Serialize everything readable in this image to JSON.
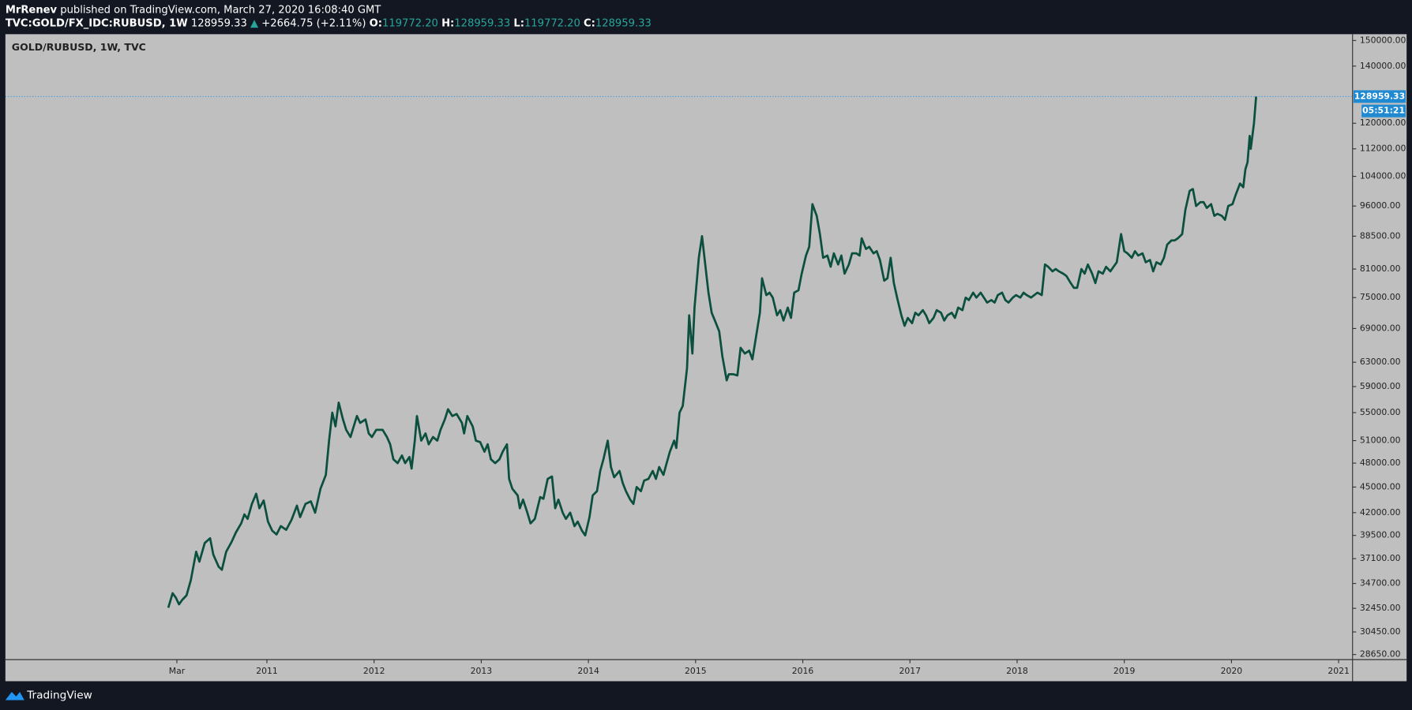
{
  "header": {
    "author": "MrRenev",
    "published": "published on TradingView.com, March 27, 2020 16:08:40 GMT",
    "symbol": "TVC:GOLD/FX_IDC:RUBUSD, 1W",
    "last": "128959.33",
    "arrow": "▲",
    "change": "+2664.75 (+2.11%)",
    "ohlc": [
      {
        "label": "O:",
        "value": "119772.20"
      },
      {
        "label": "H:",
        "value": "128959.33"
      },
      {
        "label": "L:",
        "value": "119772.20"
      },
      {
        "label": "C:",
        "value": "128959.33"
      }
    ]
  },
  "footer": {
    "brand": "TradingView"
  },
  "chart_data": {
    "type": "line",
    "title": "GOLD/RUBUSD, 1W, TVC",
    "color": "#0b4f3e",
    "log": true,
    "grid": false,
    "xlim": [
      2008.56,
      2021.13
    ],
    "xticks": [
      {
        "value": 2010.16,
        "label": "Mar"
      },
      2011,
      2012,
      2013,
      2014,
      2015,
      2016,
      2017,
      2018,
      2019,
      2020,
      2021
    ],
    "ylim": [
      28260,
      152570
    ],
    "yticks": [
      {
        "value": 150000,
        "label": "150000.00"
      },
      {
        "value": 140000,
        "label": "140000.00"
      },
      {
        "value": 120000,
        "label": "120000.00"
      },
      {
        "value": 112000,
        "label": "112000.00"
      },
      {
        "value": 104000,
        "label": "104000.00"
      },
      {
        "value": 96000,
        "label": "96000.00"
      },
      {
        "value": 88500,
        "label": "88500.00"
      },
      {
        "value": 81000,
        "label": "81000.00"
      },
      {
        "value": 75000,
        "label": "75000.00"
      },
      {
        "value": 69000,
        "label": "69000.00"
      },
      {
        "value": 63000,
        "label": "63000.00"
      },
      {
        "value": 59000,
        "label": "59000.00"
      },
      {
        "value": 55000,
        "label": "55000.00"
      },
      {
        "value": 51000,
        "label": "51000.00"
      },
      {
        "value": 48000,
        "label": "48000.00"
      },
      {
        "value": 45000,
        "label": "45000.00"
      },
      {
        "value": 42000,
        "label": "42000.00"
      },
      {
        "value": 39500,
        "label": "39500.00"
      },
      {
        "value": 37100,
        "label": "37100.00"
      },
      {
        "value": 34700,
        "label": "34700.00"
      },
      {
        "value": 32450,
        "label": "32450.00"
      },
      {
        "value": 30450,
        "label": "30450.00"
      },
      {
        "value": 28650,
        "label": "28650.00"
      }
    ],
    "last_price": {
      "value": 128959.33,
      "label": "128959.33"
    },
    "countdown": "05:51:21",
    "x": [
      2010.08,
      2010.12,
      2010.15,
      2010.18,
      2010.21,
      2010.25,
      2010.29,
      2010.34,
      2010.37,
      2010.42,
      2010.47,
      2010.5,
      2010.55,
      2010.58,
      2010.62,
      2010.67,
      2010.71,
      2010.76,
      2010.79,
      2010.82,
      2010.86,
      2010.9,
      2010.93,
      2010.97,
      2011.01,
      2011.05,
      2011.09,
      2011.13,
      2011.18,
      2011.23,
      2011.28,
      2011.31,
      2011.36,
      2011.41,
      2011.45,
      2011.5,
      2011.55,
      2011.58,
      2011.61,
      2011.64,
      2011.67,
      2011.71,
      2011.74,
      2011.78,
      2011.81,
      2011.84,
      2011.87,
      2011.92,
      2011.95,
      2011.98,
      2012.02,
      2012.08,
      2012.12,
      2012.15,
      2012.18,
      2012.22,
      2012.26,
      2012.29,
      2012.33,
      2012.35,
      2012.38,
      2012.4,
      2012.44,
      2012.48,
      2012.51,
      2012.55,
      2012.59,
      2012.62,
      2012.66,
      2012.69,
      2012.73,
      2012.77,
      2012.82,
      2012.84,
      2012.87,
      2012.92,
      2012.95,
      2012.99,
      2013.03,
      2013.06,
      2013.09,
      2013.13,
      2013.17,
      2013.2,
      2013.24,
      2013.26,
      2013.29,
      2013.34,
      2013.36,
      2013.39,
      2013.43,
      2013.46,
      2013.5,
      2013.55,
      2013.58,
      2013.62,
      2013.66,
      2013.69,
      2013.72,
      2013.76,
      2013.79,
      2013.83,
      2013.87,
      2013.9,
      2013.94,
      2013.97,
      2014.01,
      2014.04,
      2014.08,
      2014.11,
      2014.14,
      2014.18,
      2014.21,
      2014.24,
      2014.29,
      2014.32,
      2014.35,
      2014.39,
      2014.42,
      2014.45,
      2014.49,
      2014.52,
      2014.56,
      2014.6,
      2014.63,
      2014.66,
      2014.7,
      2014.73,
      2014.76,
      2014.8,
      2014.82,
      2014.85,
      2014.88,
      2014.92,
      2014.94,
      2014.97,
      2014.99,
      2015.03,
      2015.06,
      2015.09,
      2015.12,
      2015.15,
      2015.18,
      2015.22,
      2015.25,
      2015.29,
      2015.31,
      2015.35,
      2015.39,
      2015.42,
      2015.46,
      2015.5,
      2015.53,
      2015.56,
      2015.6,
      2015.62,
      2015.66,
      2015.69,
      2015.72,
      2015.76,
      2015.79,
      2015.82,
      2015.86,
      2015.89,
      2015.92,
      2015.96,
      2015.99,
      2016.03,
      2016.06,
      2016.09,
      2016.13,
      2016.16,
      2016.19,
      2016.23,
      2016.26,
      2016.29,
      2016.33,
      2016.36,
      2016.39,
      2016.43,
      2016.46,
      2016.5,
      2016.53,
      2016.55,
      2016.59,
      2016.62,
      2016.66,
      2016.69,
      2016.72,
      2016.76,
      2016.79,
      2016.82,
      2016.85,
      2016.88,
      2016.92,
      2016.95,
      2016.98,
      2017.02,
      2017.05,
      2017.08,
      2017.12,
      2017.15,
      2017.18,
      2017.22,
      2017.25,
      2017.29,
      2017.32,
      2017.35,
      2017.39,
      2017.42,
      2017.45,
      2017.49,
      2017.52,
      2017.55,
      2017.59,
      2017.62,
      2017.66,
      2017.69,
      2017.72,
      2017.76,
      2017.79,
      2017.82,
      2017.86,
      2017.89,
      2017.92,
      2017.96,
      2017.99,
      2018.03,
      2018.06,
      2018.09,
      2018.13,
      2018.16,
      2018.19,
      2018.23,
      2018.26,
      2018.29,
      2018.33,
      2018.36,
      2018.39,
      2018.43,
      2018.46,
      2018.5,
      2018.53,
      2018.56,
      2018.6,
      2018.63,
      2018.66,
      2018.7,
      2018.73,
      2018.76,
      2018.8,
      2018.83,
      2018.87,
      2018.9,
      2018.93,
      2018.97,
      2019.0,
      2019.03,
      2019.07,
      2019.1,
      2019.13,
      2019.17,
      2019.2,
      2019.24,
      2019.27,
      2019.3,
      2019.34,
      2019.37,
      2019.4,
      2019.44,
      2019.47,
      2019.5,
      2019.54,
      2019.57,
      2019.61,
      2019.64,
      2019.67,
      2019.71,
      2019.74,
      2019.77,
      2019.81,
      2019.84,
      2019.87,
      2019.91,
      2019.94,
      2019.97,
      2020.01,
      2020.04,
      2020.08,
      2020.11,
      2020.13,
      2020.15,
      2020.17,
      2020.18,
      2020.21,
      2020.23
    ],
    "values": [
      32500,
      33800,
      33400,
      32800,
      33200,
      33600,
      35000,
      37800,
      36800,
      38700,
      39200,
      37500,
      36300,
      36000,
      37800,
      38800,
      39800,
      40800,
      41800,
      41300,
      43000,
      44200,
      42500,
      43400,
      41000,
      40000,
      39600,
      40500,
      40100,
      41200,
      42800,
      41500,
      43000,
      43300,
      42000,
      44800,
      46500,
      51000,
      55000,
      53000,
      56500,
      54000,
      52500,
      51500,
      53000,
      54500,
      53500,
      54000,
      52000,
      51500,
      52500,
      52500,
      51500,
      50500,
      48500,
      48000,
      49000,
      48000,
      48800,
      47300,
      51000,
      54500,
      51000,
      52000,
      50500,
      51500,
      51000,
      52500,
      54000,
      55500,
      54500,
      54800,
      53500,
      52000,
      54500,
      53000,
      51000,
      50800,
      49500,
      50500,
      48500,
      48000,
      48500,
      49500,
      50500,
      46000,
      44800,
      44000,
      42500,
      43500,
      42000,
      40800,
      41300,
      43800,
      43600,
      46000,
      46300,
      42500,
      43500,
      42000,
      41300,
      42000,
      40500,
      41000,
      40000,
      39500,
      41500,
      44000,
      44500,
      47000,
      48500,
      51000,
      47500,
      46200,
      47000,
      45500,
      44500,
      43500,
      43000,
      45000,
      44500,
      45800,
      46000,
      47000,
      46000,
      47500,
      46500,
      48000,
      49500,
      51000,
      50000,
      55000,
      56000,
      62000,
      71500,
      64500,
      73000,
      83500,
      88500,
      82000,
      76000,
      72000,
      70500,
      68500,
      64000,
      60000,
      61000,
      61000,
      60800,
      65500,
      64500,
      65000,
      63500,
      67000,
      72000,
      79000,
      75500,
      76000,
      75000,
      71500,
      72500,
      70500,
      73000,
      71000,
      76000,
      76500,
      80000,
      84000,
      86000,
      96500,
      93500,
      89000,
      83500,
      84000,
      81500,
      84500,
      82000,
      84000,
      80000,
      82000,
      84500,
      84500,
      84000,
      88000,
      85500,
      86000,
      84500,
      85000,
      83000,
      78500,
      79000,
      83500,
      78000,
      75000,
      71500,
      69500,
      71000,
      70000,
      72000,
      71500,
      72500,
      71500,
      70000,
      71000,
      72500,
      72000,
      70500,
      71500,
      72000,
      71000,
      73000,
      72500,
      75000,
      74500,
      76000,
      75000,
      76000,
      75000,
      74000,
      74500,
      74000,
      75500,
      76000,
      74500,
      74000,
      75000,
      75500,
      75000,
      76000,
      75500,
      75000,
      75500,
      76000,
      75500,
      82000,
      81500,
      80500,
      81000,
      80500,
      80000,
      79500,
      78000,
      77000,
      77000,
      81000,
      80000,
      82000,
      80000,
      78000,
      80500,
      80000,
      81500,
      80500,
      81500,
      82500,
      89000,
      85000,
      84500,
      83500,
      85000,
      84000,
      84500,
      82500,
      83000,
      80500,
      82500,
      82000,
      83500,
      86500,
      87500,
      87500,
      88000,
      89000,
      95000,
      100000,
      100500,
      96000,
      97000,
      97000,
      95500,
      96500,
      93500,
      94000,
      93500,
      92500,
      96000,
      96500,
      99000,
      102000,
      101000,
      106000,
      108000,
      116000,
      112000,
      120000,
      128959.33
    ]
  }
}
